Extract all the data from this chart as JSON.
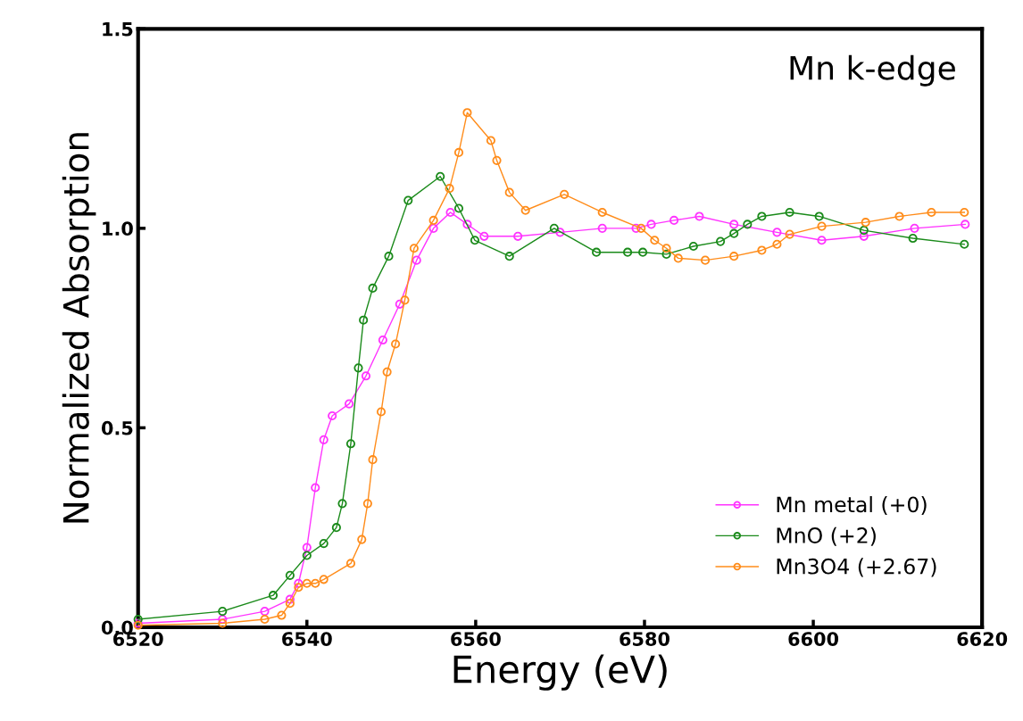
{
  "chart_data": {
    "type": "line",
    "xlabel": "Energy (eV)",
    "ylabel": "Normalized Absorption",
    "annotations": [
      "Mn k-edge"
    ],
    "xlim": [
      6520,
      6620
    ],
    "xticks": [
      6520,
      6540,
      6560,
      6580,
      6600,
      6620
    ],
    "ylim": [
      0,
      1.5
    ],
    "yticks": [
      {
        "value": 0,
        "label": "0.0"
      },
      {
        "value": 0.5,
        "label": "0.5"
      },
      {
        "value": 1.0,
        "label": "1.0"
      },
      {
        "value": 1.5,
        "label": "1.5"
      }
    ],
    "grid": false,
    "legend": "bottom right",
    "marker": "circle",
    "line_style": "solid",
    "series": [
      {
        "name": "Mn metal (+0)",
        "color": "#ff33ff",
        "x": [
          6520,
          6530,
          6535,
          6538,
          6539,
          6540,
          6541,
          6542,
          6543,
          6545,
          6547,
          6549,
          6551,
          6553,
          6555,
          6557,
          6559,
          6561,
          6565,
          6570,
          6575,
          6579,
          6580.8,
          6583.5,
          6586.5,
          6590.6,
          6595.7,
          6601,
          6606,
          6612,
          6618
        ],
        "values": [
          0.01,
          0.02,
          0.04,
          0.07,
          0.11,
          0.2,
          0.35,
          0.47,
          0.53,
          0.56,
          0.63,
          0.72,
          0.81,
          0.92,
          1.0,
          1.04,
          1.01,
          0.98,
          0.98,
          0.99,
          1.0,
          1.0,
          1.01,
          1.02,
          1.03,
          1.01,
          0.99,
          0.97,
          0.98,
          1.0,
          1.01
        ]
      },
      {
        "name": "MnO (+2)",
        "color": "#1a8a1a",
        "x": [
          6520,
          6530,
          6536,
          6538,
          6540,
          6542,
          6543.5,
          6544.2,
          6545.2,
          6546.1,
          6546.7,
          6547.8,
          6549.7,
          6552,
          6555.8,
          6558,
          6559.9,
          6564,
          6569.3,
          6574.3,
          6578,
          6579.8,
          6582.6,
          6585.8,
          6589,
          6590.6,
          6592.2,
          6593.9,
          6597.2,
          6600.7,
          6606,
          6611.8,
          6617.9
        ],
        "values": [
          0.02,
          0.04,
          0.08,
          0.13,
          0.18,
          0.21,
          0.25,
          0.31,
          0.46,
          0.65,
          0.77,
          0.85,
          0.93,
          1.07,
          1.13,
          1.05,
          0.97,
          0.93,
          1.0,
          0.94,
          0.94,
          0.94,
          0.935,
          0.955,
          0.967,
          0.987,
          1.01,
          1.03,
          1.04,
          1.03,
          0.995,
          0.975,
          0.96
        ]
      },
      {
        "name": "Mn3O4 (+2.67)",
        "color": "#ff8c1a",
        "x": [
          6520,
          6530,
          6535,
          6537,
          6538,
          6539,
          6540,
          6541,
          6542,
          6545.2,
          6546.5,
          6547.2,
          6547.8,
          6548.8,
          6549.5,
          6550.5,
          6551.6,
          6552.7,
          6555,
          6556.9,
          6558,
          6559,
          6561.8,
          6562.5,
          6564,
          6565.9,
          6570.5,
          6575,
          6579.6,
          6581.2,
          6582.6,
          6584,
          6587.2,
          6590.6,
          6593.9,
          6595.7,
          6597.2,
          6601,
          6606.2,
          6610.2,
          6614,
          6617.9
        ],
        "values": [
          0.005,
          0.01,
          0.02,
          0.03,
          0.06,
          0.1,
          0.11,
          0.11,
          0.12,
          0.16,
          0.22,
          0.31,
          0.42,
          0.54,
          0.64,
          0.71,
          0.82,
          0.95,
          1.02,
          1.1,
          1.19,
          1.29,
          1.22,
          1.17,
          1.09,
          1.045,
          1.085,
          1.04,
          1.0,
          0.97,
          0.95,
          0.925,
          0.92,
          0.93,
          0.945,
          0.96,
          0.985,
          1.005,
          1.015,
          1.03,
          1.04,
          1.04
        ]
      }
    ]
  }
}
